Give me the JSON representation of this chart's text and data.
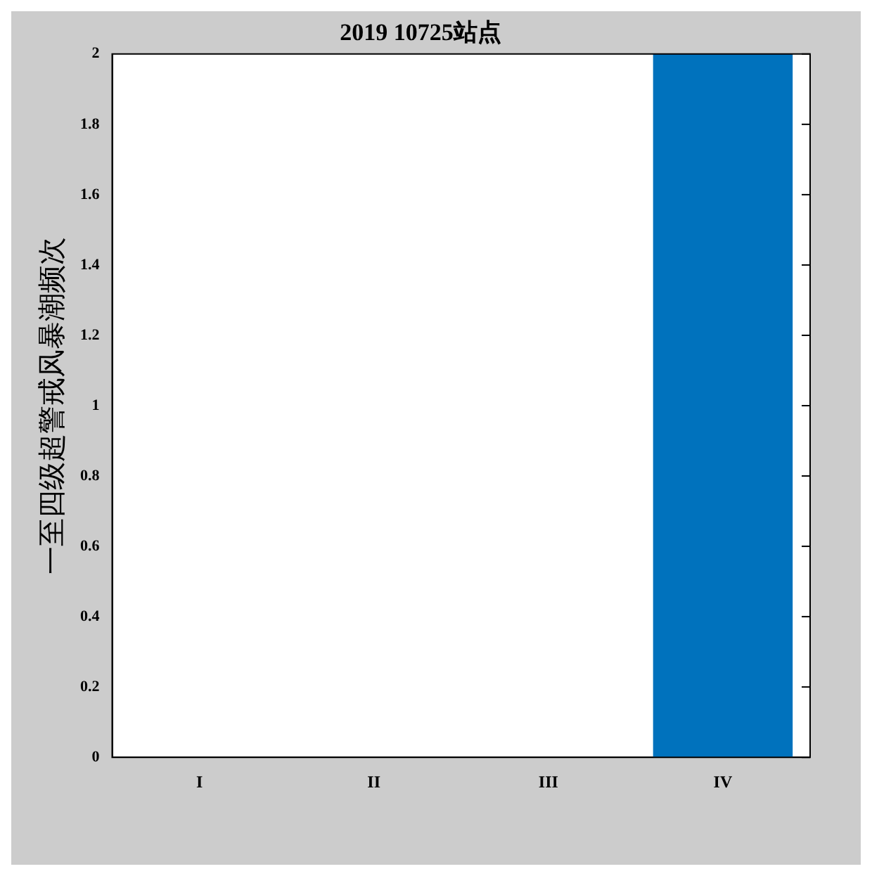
{
  "chart_data": {
    "type": "bar",
    "title": "2019 10725站点",
    "ylabel": "一至四级超警戒风暴潮频次",
    "categories": [
      "I",
      "II",
      "III",
      "IV"
    ],
    "series": [
      {
        "color": "#0072bd",
        "values": [
          0,
          0,
          0,
          2
        ]
      }
    ],
    "ylim": [
      0,
      2
    ],
    "yticks": [
      0,
      0.2,
      0.4,
      0.6,
      0.8,
      1,
      1.2,
      1.4,
      1.6,
      1.8,
      2
    ],
    "grid": false,
    "legend": false
  }
}
